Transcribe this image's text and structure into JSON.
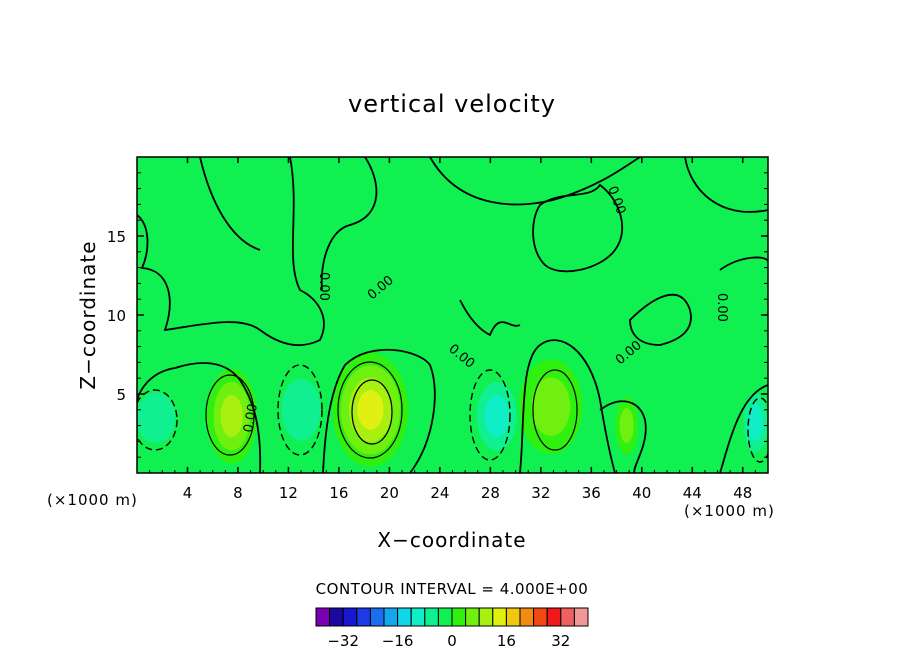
{
  "chart_data": {
    "type": "contour",
    "title": "vertical velocity",
    "xlabel": "X−coordinate",
    "ylabel": "Z−coordinate",
    "x_unit_left": "(×1000 m)",
    "x_unit_right": "(×1000 m)",
    "xlim": [
      0,
      50
    ],
    "ylim": [
      0,
      20
    ],
    "xticks": [
      4,
      8,
      12,
      16,
      20,
      24,
      28,
      32,
      36,
      40,
      44,
      48
    ],
    "yticks": [
      5,
      10,
      15
    ],
    "contour_interval_text": "CONTOUR INTERVAL =  4.000E+00",
    "contour_interval": 4,
    "contour_labels": [
      "0.00",
      "0.00",
      "0.00",
      "0.00",
      "0.00",
      "0.00",
      "0.00"
    ],
    "colorbar": {
      "levels": [
        -36,
        -32,
        -28,
        -24,
        -20,
        -16,
        -12,
        -8,
        -4,
        0,
        4,
        8,
        12,
        16,
        20,
        24,
        28,
        32,
        36
      ],
      "colors": [
        "#7a00b0",
        "#1a0aa0",
        "#1818d0",
        "#1c3ae6",
        "#1a6ef0",
        "#16a6f0",
        "#10d8e8",
        "#10eec8",
        "#10f090",
        "#10f050",
        "#30f010",
        "#70f010",
        "#a8f010",
        "#e0f010",
        "#f0c810",
        "#f08c10",
        "#f04a10",
        "#f01818",
        "#f06060",
        "#f09898"
      ],
      "tick_labels": [
        "−32",
        "−16",
        "0",
        "16",
        "32"
      ],
      "tick_values": [
        -32,
        -16,
        0,
        16,
        32
      ]
    },
    "background_color": "#10f050",
    "cells": [
      {
        "x": 1.5,
        "z": 3.5,
        "rx": 2.5,
        "rz": 2.6,
        "value": -8
      },
      {
        "x": 7.5,
        "z": 3.6,
        "rx": 2.0,
        "rz": 3.0,
        "value": 12
      },
      {
        "x": 13.0,
        "z": 4.0,
        "rx": 2.5,
        "rz": 3.2,
        "value": -8
      },
      {
        "x": 18.5,
        "z": 4.0,
        "rx": 3.0,
        "rz": 3.6,
        "value": 14
      },
      {
        "x": 28.5,
        "z": 3.6,
        "rx": 2.2,
        "rz": 3.0,
        "value": -12
      },
      {
        "x": 32.8,
        "z": 4.2,
        "rx": 2.5,
        "rz": 3.0,
        "value": 8
      },
      {
        "x": 38.8,
        "z": 3.0,
        "rx": 0.9,
        "rz": 1.8,
        "value": 6
      },
      {
        "x": 49.0,
        "z": 3.2,
        "rx": 1.3,
        "rz": 2.6,
        "value": -10
      }
    ]
  }
}
